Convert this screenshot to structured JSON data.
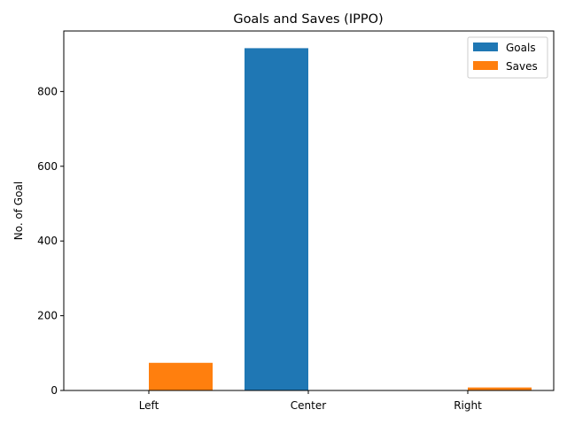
{
  "chart_data": {
    "type": "bar",
    "title": "Goals and Saves (IPPO)",
    "xlabel": "",
    "ylabel": "No. of Goal",
    "categories": [
      "Left",
      "Center",
      "Right"
    ],
    "series": [
      {
        "name": "Goals",
        "values": [
          0,
          916,
          0
        ],
        "color": "#1f77b4"
      },
      {
        "name": "Saves",
        "values": [
          74,
          0,
          8
        ],
        "color": "#ff7f0e"
      }
    ],
    "ylim": [
      0,
      962
    ],
    "yticks": [
      0,
      200,
      400,
      600,
      800
    ],
    "grid": false,
    "legend_position": "top-right"
  }
}
